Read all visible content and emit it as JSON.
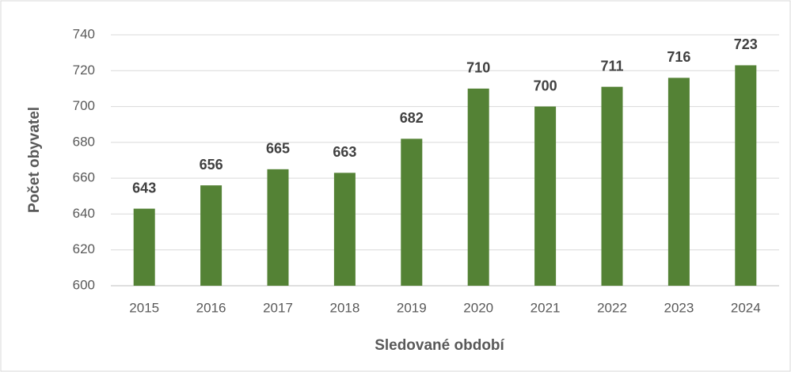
{
  "chart_data": {
    "type": "bar",
    "categories": [
      "2015",
      "2016",
      "2017",
      "2018",
      "2019",
      "2020",
      "2021",
      "2022",
      "2023",
      "2024"
    ],
    "values": [
      643,
      656,
      665,
      663,
      682,
      710,
      700,
      711,
      716,
      723
    ],
    "color": "#548235",
    "x_label": "Sledované období",
    "y_label": "Počet obyvatel",
    "ylim": [
      600,
      740
    ],
    "yticks": [
      600,
      620,
      640,
      660,
      680,
      700,
      720,
      740
    ],
    "grid": true
  }
}
